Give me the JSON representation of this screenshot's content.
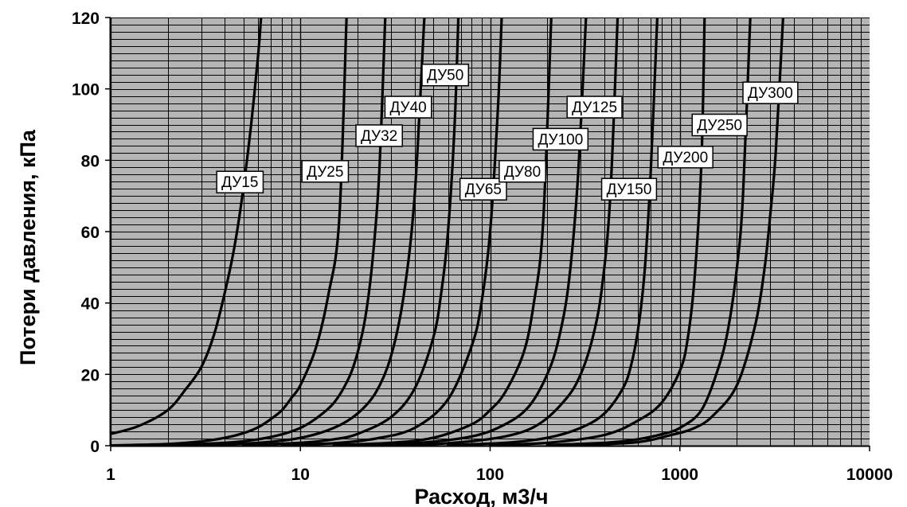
{
  "chart_data": {
    "type": "line",
    "title": "",
    "xlabel": "Расход, м3/ч",
    "ylabel": "Потери давления, кПа",
    "xscale": "log",
    "xlim": [
      1,
      10000
    ],
    "ylim": [
      0,
      120
    ],
    "grid": true,
    "background_color": "#b4b4b4",
    "line_color": "#000000",
    "xticks": [
      "1",
      "10",
      "100",
      "1000",
      "10000"
    ],
    "yticks": [
      "0",
      "20",
      "40",
      "60",
      "80",
      "100",
      "120"
    ],
    "series": [
      {
        "name": "ДУ15",
        "label_at": [
          4.8,
          74
        ],
        "x": [
          1,
          1.4,
          2,
          2.5,
          3,
          3.5,
          4,
          4.5,
          5,
          5.5,
          6,
          6.2
        ],
        "y": [
          3.3,
          5.5,
          10,
          16,
          22,
          31,
          43,
          56,
          72,
          90,
          110,
          120
        ]
      },
      {
        "name": "ДУ25",
        "label_at": [
          13.5,
          77
        ],
        "x": [
          1,
          2,
          3,
          4,
          5,
          6,
          7,
          8,
          9,
          10,
          12,
          14,
          16,
          17.5
        ],
        "y": [
          0.1,
          0.5,
          1.2,
          2.2,
          3.5,
          5.2,
          7.5,
          10,
          13.5,
          17,
          27,
          42,
          63,
          120
        ]
      },
      {
        "name": "ДУ32",
        "label_at": [
          26,
          87
        ],
        "x": [
          2,
          4,
          6,
          8,
          10,
          12,
          15,
          18,
          20,
          22,
          24,
          26,
          28
        ],
        "y": [
          0.2,
          0.8,
          1.8,
          3.2,
          5,
          7.5,
          12,
          19,
          26,
          36,
          52,
          76,
          120
        ]
      },
      {
        "name": "ДУ40",
        "label_at": [
          37,
          95
        ],
        "x": [
          3,
          6,
          10,
          15,
          20,
          25,
          30,
          35,
          40,
          45
        ],
        "y": [
          0.2,
          0.8,
          2.2,
          5,
          9,
          15,
          25,
          42,
          70,
          120
        ]
      },
      {
        "name": "ДУ50",
        "label_at": [
          58,
          104
        ],
        "x": [
          5,
          10,
          15,
          20,
          30,
          40,
          50,
          55,
          60,
          65,
          68
        ],
        "y": [
          0.2,
          0.8,
          1.8,
          3.3,
          8,
          16,
          30,
          42,
          60,
          90,
          120
        ]
      },
      {
        "name": "ДУ65",
        "label_at": [
          92,
          72
        ],
        "x": [
          8,
          15,
          25,
          40,
          60,
          80,
          90,
          100,
          110,
          115
        ],
        "y": [
          0.2,
          0.7,
          2,
          5,
          13,
          28,
          40,
          60,
          95,
          120
        ]
      },
      {
        "name": "ДУ80",
        "label_at": [
          148,
          77
        ],
        "x": [
          15,
          30,
          50,
          80,
          100,
          120,
          150,
          170,
          190,
          210
        ],
        "y": [
          0.2,
          0.8,
          2.2,
          6,
          10,
          15,
          26,
          40,
          62,
          120
        ]
      },
      {
        "name": "ДУ100",
        "label_at": [
          235,
          86
        ],
        "x": [
          20,
          40,
          80,
          120,
          160,
          200,
          230,
          260,
          290,
          320
        ],
        "y": [
          0.2,
          0.7,
          2.6,
          6,
          11,
          20,
          30,
          46,
          75,
          120
        ]
      },
      {
        "name": "ДУ125",
        "label_at": [
          355,
          95
        ],
        "x": [
          30,
          60,
          120,
          180,
          250,
          300,
          350,
          390,
          430,
          470
        ],
        "y": [
          0.2,
          0.7,
          2.6,
          6,
          13,
          20,
          31,
          45,
          70,
          120
        ]
      },
      {
        "name": "ДУ150",
        "label_at": [
          540,
          72
        ],
        "x": [
          60,
          120,
          200,
          300,
          400,
          500,
          550,
          600,
          650,
          700,
          760
        ],
        "y": [
          0.2,
          0.8,
          2.2,
          5,
          9,
          16,
          22,
          32,
          48,
          75,
          120
        ]
      },
      {
        "name": "ДУ200",
        "label_at": [
          1070,
          81
        ],
        "x": [
          100,
          200,
          400,
          600,
          800,
          1000,
          1100,
          1200,
          1300,
          1350
        ],
        "y": [
          0.2,
          0.8,
          3,
          7,
          12,
          21,
          30,
          48,
          80,
          120
        ]
      },
      {
        "name": "ДУ250",
        "label_at": [
          1620,
          90
        ],
        "x": [
          200,
          400,
          600,
          800,
          1000,
          1300,
          1600,
          1800,
          2000,
          2150,
          2350
        ],
        "y": [
          0.2,
          0.8,
          1.8,
          3.2,
          5,
          10,
          22,
          33,
          50,
          70,
          120
        ]
      },
      {
        "name": "ДУ300",
        "label_at": [
          3000,
          99
        ],
        "x": [
          300,
          600,
          900,
          1200,
          1500,
          2000,
          2500,
          2800,
          3000,
          3200,
          3500
        ],
        "y": [
          0.2,
          1,
          3,
          5,
          8.5,
          17,
          34,
          50,
          65,
          82,
          120
        ]
      }
    ]
  }
}
